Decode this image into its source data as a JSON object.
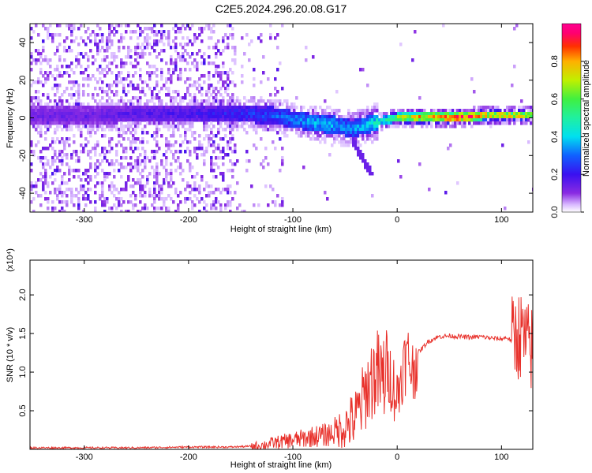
{
  "title": "C2E5.2024.296.20.08.G17",
  "chart_data": [
    {
      "type": "heatmap",
      "title": "C2E5.2024.296.20.08.G17",
      "xlabel": "Height of straight line (km)",
      "ylabel": "Frequency (Hz)",
      "xlim": [
        -352,
        130
      ],
      "ylim": [
        -50,
        50
      ],
      "x_ticks": [
        -300,
        -200,
        -100,
        0,
        100
      ],
      "y_ticks": [
        -40,
        -20,
        0,
        20,
        40
      ],
      "colorbar": {
        "label": "Normalized spectral amplitude",
        "range": [
          0,
          1
        ],
        "ticks": [
          0.0,
          0.2,
          0.4,
          0.6,
          0.8
        ],
        "colormap": "rainbow (magenta-blue-cyan-green-yellow-red)"
      },
      "ridge": {
        "x": [
          -352,
          -300,
          -250,
          -200,
          -150,
          -120,
          -100,
          -80,
          -60,
          -45,
          -30,
          -10,
          0,
          20,
          40,
          60,
          80,
          100,
          130
        ],
        "frequency": [
          2,
          2,
          3,
          3,
          3,
          2,
          0,
          -2,
          -3,
          -5,
          -3,
          0,
          1,
          1,
          1,
          1,
          2,
          2,
          2
        ],
        "amplitude": [
          0.15,
          0.15,
          0.18,
          0.2,
          0.25,
          0.3,
          0.35,
          0.4,
          0.4,
          0.35,
          0.45,
          0.55,
          0.7,
          0.85,
          0.95,
          0.98,
          0.9,
          0.85,
          0.75
        ]
      },
      "grid": false
    },
    {
      "type": "line",
      "xlabel": "Height of straight line (km)",
      "ylabel": "SNR (10 * v/v)",
      "y_multiplier_label": "(x10⁴)",
      "xlim": [
        -352,
        130
      ],
      "ylim": [
        0,
        2.45
      ],
      "x_ticks": [
        -300,
        -200,
        -100,
        0,
        100
      ],
      "y_ticks": [
        0.5,
        1.0,
        1.5,
        2.0
      ],
      "color": "#e8302a",
      "series": [
        {
          "x": [
            -352,
            -300,
            -250,
            -200,
            -160,
            -140,
            -130,
            -120,
            -110,
            -100,
            -90,
            -80,
            -70,
            -60,
            -50,
            -40,
            -35,
            -30,
            -25,
            -20,
            -15,
            -10,
            -5,
            0,
            5,
            10,
            15,
            20,
            30,
            40,
            50,
            60,
            70,
            80,
            90,
            100,
            105,
            110,
            115,
            120,
            125,
            130
          ],
          "y": [
            0.02,
            0.02,
            0.02,
            0.03,
            0.03,
            0.04,
            0.05,
            0.08,
            0.1,
            0.12,
            0.14,
            0.17,
            0.18,
            0.22,
            0.3,
            0.4,
            0.55,
            0.75,
            0.9,
            1.0,
            0.85,
            1.05,
            0.9,
            0.65,
            1.05,
            1.2,
            1.0,
            1.25,
            1.4,
            1.46,
            1.47,
            1.46,
            1.45,
            1.46,
            1.44,
            1.43,
            1.45,
            1.4,
            1.5,
            1.45,
            1.32,
            1.3
          ]
        }
      ],
      "grid": false
    }
  ]
}
